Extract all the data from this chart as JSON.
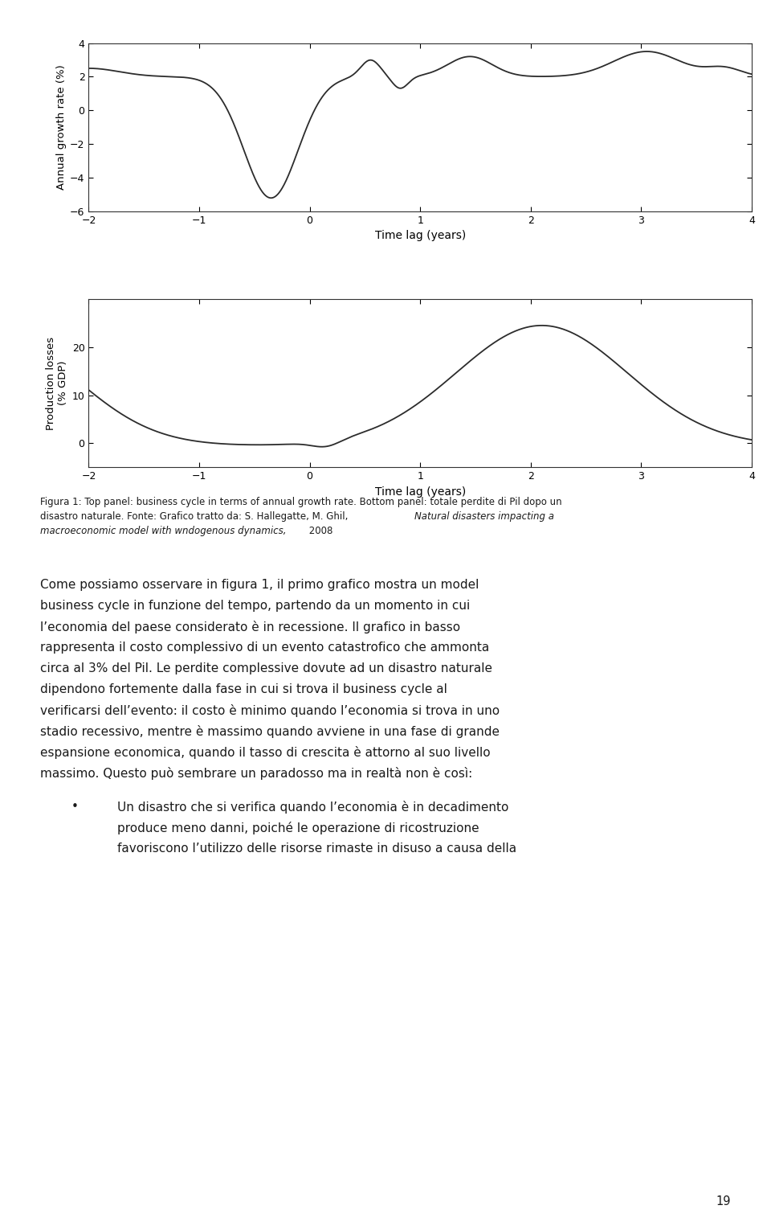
{
  "top_panel": {
    "xlabel": "Time lag (years)",
    "ylabel": "Annual growth rate (%)",
    "xlim": [
      -2,
      4
    ],
    "ylim": [
      -6,
      4
    ],
    "xticks": [
      -2,
      -1,
      0,
      1,
      2,
      3,
      4
    ],
    "yticks": [
      -6,
      -4,
      -2,
      0,
      2,
      4
    ]
  },
  "bottom_panel": {
    "xlabel": "Time lag (years)",
    "ylabel": "Production losses\n(% GDP)",
    "xlim": [
      -2,
      4
    ],
    "ylim": [
      -5,
      30
    ],
    "xticks": [
      -2,
      -1,
      0,
      1,
      2,
      3,
      4
    ],
    "yticks": [
      0,
      10,
      20
    ]
  },
  "caption_line1": "Figura 1: Top panel: business cycle in terms of annual growth rate. Bottom panel: totale perdite di Pil dopo un",
  "caption_line2_normal": "disastro naturale. Fonte: Grafico tratto da: S. Hallegatte, M. Ghil, ",
  "caption_line2_italic": "Natural disasters impacting a",
  "caption_line3_italic": "macroeconomic model with wndogenous dynamics,",
  "caption_line3_normal": " 2008",
  "body_lines": [
    "Come possiamo osservare in figura 1, il primo grafico mostra un model",
    "business cycle in funzione del tempo, partendo da un momento in cui",
    "l’economia del paese considerato è in recessione. Il grafico in basso",
    "rappresenta il costo complessivo di un evento catastrofico che ammonta",
    "circa al 3% del Pil. Le perdite complessive dovute ad un disastro naturale",
    "dipendono fortemente dalla fase in cui si trova il business cycle al",
    "verificarsi dell’evento: il costo è minimo quando l’economia si trova in uno",
    "stadio recessivo, mentre è massimo quando avviene in una fase di grande",
    "espansione economica, quando il tasso di crescita è attorno al suo livello",
    "massimo. Questo può sembrare un paradosso ma in realtà non è così:"
  ],
  "bullet_lines": [
    "Un disastro che si verifica quando l’economia è in decadimento",
    "produce meno danni, poiché le operazione di ricostruzione",
    "favoriscono l’utilizzo delle risorse rimaste in disuso a causa della"
  ],
  "page_number": "19",
  "line_color": "#2c2c2c",
  "bg_color": "#ffffff",
  "text_color": "#1a1a1a"
}
